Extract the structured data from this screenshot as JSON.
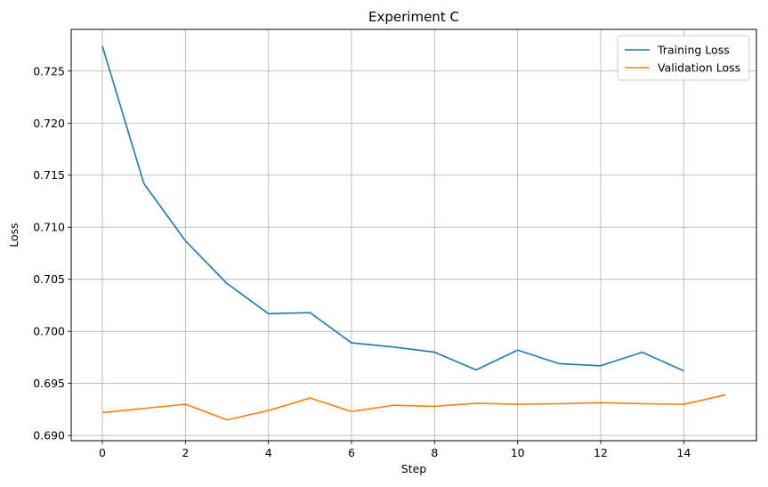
{
  "chart_data": {
    "type": "line",
    "title": "Experiment C",
    "xlabel": "Step",
    "ylabel": "Loss",
    "xlim": [
      -0.75,
      15.75
    ],
    "ylim": [
      0.6895,
      0.729
    ],
    "xticks": [
      0,
      2,
      4,
      6,
      8,
      10,
      12,
      14
    ],
    "yticks": [
      0.69,
      0.695,
      0.7,
      0.705,
      0.71,
      0.715,
      0.72,
      0.725
    ],
    "grid": true,
    "legend_position": "top-right",
    "series": [
      {
        "name": "Training Loss",
        "color": "#1f77b4",
        "x": [
          0,
          1,
          2,
          3,
          4,
          5,
          6,
          7,
          8,
          9,
          10,
          11,
          12,
          13,
          14
        ],
        "y": [
          0.7274,
          0.7142,
          0.7087,
          0.7046,
          0.7017,
          0.7018,
          0.6989,
          0.6985,
          0.698,
          0.6963,
          0.6982,
          0.6969,
          0.6967,
          0.698,
          0.6962
        ]
      },
      {
        "name": "Validation Loss",
        "color": "#ff7f0e",
        "x": [
          0,
          1,
          2,
          3,
          4,
          5,
          6,
          7,
          8,
          9,
          10,
          11,
          12,
          13,
          14,
          15
        ],
        "y": [
          0.6922,
          0.6926,
          0.693,
          0.6915,
          0.6924,
          0.6936,
          0.6923,
          0.6929,
          0.6928,
          0.6931,
          0.693,
          0.69305,
          0.69315,
          0.69305,
          0.693,
          0.6939
        ]
      }
    ]
  }
}
